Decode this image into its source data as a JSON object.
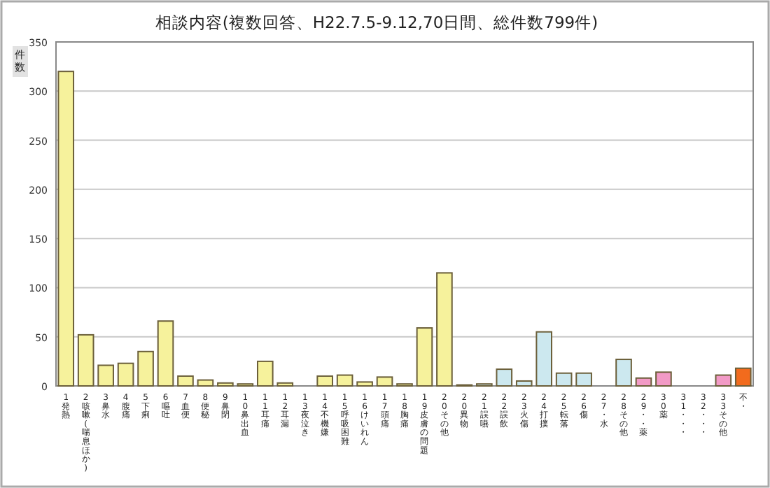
{
  "chart_data": {
    "type": "bar",
    "title": "相談内容(複数回答、H22.7.5-9.12,70日間、総件数799件)",
    "ylabel": "件数",
    "categories": [
      "1発熱",
      "2咳嗽(喘息ほか)",
      "3鼻水",
      "4腹痛",
      "5下痢",
      "6嘔吐",
      "7血便",
      "8便秘",
      "9鼻閉",
      "10鼻出血",
      "11耳痛",
      "12耳漏",
      "13夜泣き",
      "14不機嫌",
      "15呼吸困難",
      "16けいれん",
      "17頭痛",
      "18胸痛",
      "19皮膚の問題",
      "20その他",
      "20異物",
      "21誤嚥",
      "22誤飲",
      "23火傷",
      "24打撲",
      "25転落",
      "26傷",
      "27・水",
      "28その他",
      "29・・薬",
      "30薬",
      "31・・・",
      "32・・・",
      "33その他",
      "不・"
    ],
    "values": [
      320,
      52,
      21,
      23,
      35,
      66,
      10,
      6,
      3,
      2,
      25,
      3,
      0,
      10,
      11,
      4,
      9,
      2,
      59,
      115,
      1,
      2,
      17,
      5,
      55,
      13,
      13,
      0,
      27,
      8,
      14,
      0,
      0,
      11,
      18
    ],
    "colors": [
      "#f6f29c",
      "#f6f29c",
      "#f6f29c",
      "#f6f29c",
      "#f6f29c",
      "#f6f29c",
      "#f6f29c",
      "#f6f29c",
      "#f6f29c",
      "#f6f29c",
      "#f6f29c",
      "#f6f29c",
      "#f6f29c",
      "#f6f29c",
      "#f6f29c",
      "#f6f29c",
      "#f6f29c",
      "#f6f29c",
      "#f6f29c",
      "#f6f29c",
      "#cce8ef",
      "#cce8ef",
      "#cce8ef",
      "#cce8ef",
      "#cce8ef",
      "#cce8ef",
      "#cce8ef",
      "#cce8ef",
      "#cce8ef",
      "#f29ac6",
      "#f29ac6",
      "#f29ac6",
      "#f29ac6",
      "#f29ac6",
      "#f26b1d"
    ],
    "ylim": [
      0,
      350
    ],
    "yticks": [
      0,
      50,
      100,
      150,
      200,
      250,
      300,
      350
    ],
    "grid": "y"
  }
}
